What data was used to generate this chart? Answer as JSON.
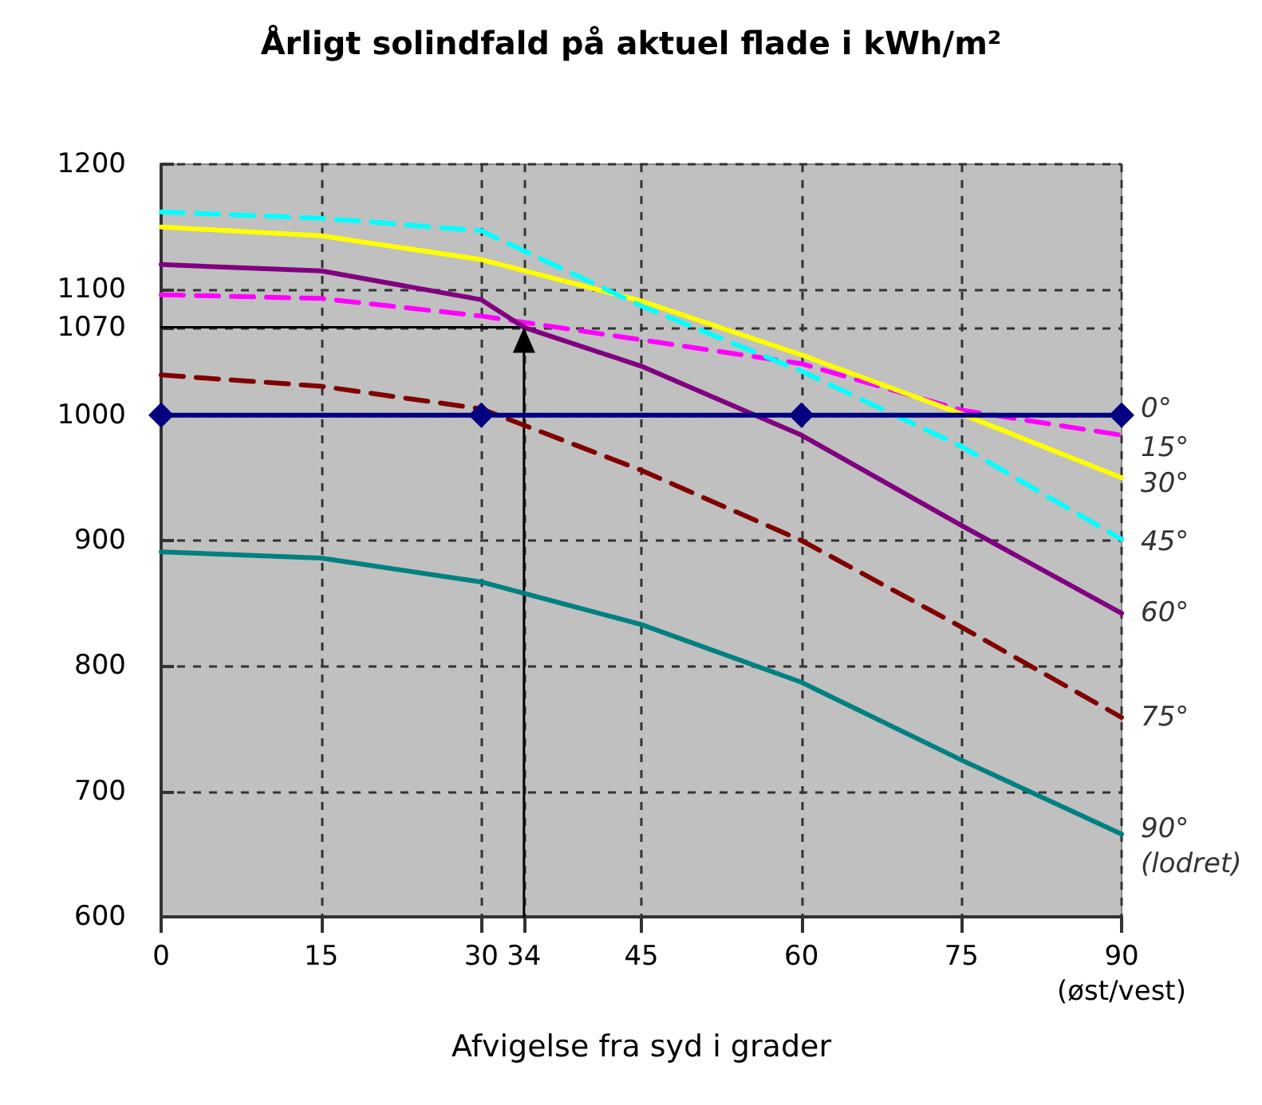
{
  "chart_data": {
    "type": "line",
    "title": "Årligt solindfald på aktuel flade i kWh/m²",
    "xlabel": "Afvigelse fra syd i grader",
    "x": [
      0,
      15,
      30,
      45,
      60,
      75,
      90
    ],
    "xlim": [
      0,
      90
    ],
    "xticks": [
      0,
      15,
      30,
      34,
      45,
      60,
      75,
      {
        "value": 90,
        "label": "90\n(øst/vest)"
      }
    ],
    "ylim": [
      600,
      1200
    ],
    "yticks": [
      600,
      700,
      800,
      900,
      1000,
      1070,
      1100,
      1200
    ],
    "grid": true,
    "legend": false,
    "series": [
      {
        "type": "line",
        "color": "#000000",
        "x": [
          34,
          34,
          0
        ],
        "values": [
          600,
          1070,
          1070
        ],
        "marker": "none",
        "line_style": "solid"
      },
      {
        "name": "0°",
        "color": "#000080",
        "x": [
          0,
          30,
          60,
          90
        ],
        "values": [
          1000,
          1000,
          1000,
          1000
        ],
        "marker": "diamond",
        "line_style": "solid"
      },
      {
        "name": "15°",
        "color": "#ff00ff",
        "values": [
          1096,
          1093,
          1079,
          1060,
          1041,
          1004,
          984
        ],
        "marker": "none",
        "line_style": "dashed"
      },
      {
        "name": "30°",
        "color": "#ffff00",
        "values": [
          1150,
          1143,
          1124,
          1091,
          1048,
          1001,
          950
        ],
        "marker": "none",
        "line_style": "solid"
      },
      {
        "name": "45°",
        "color": "#00ffff",
        "values": [
          1162,
          1157,
          1147,
          1087,
          1035,
          975,
          901
        ],
        "marker": "none",
        "line_style": "dashed"
      },
      {
        "name": "60°",
        "color": "#800080",
        "x": [
          0,
          15,
          30,
          34,
          45,
          60,
          75,
          90
        ],
        "values": [
          1120,
          1115,
          1092,
          1070,
          1039,
          984,
          912,
          842
        ],
        "marker": "none",
        "line_style": "solid"
      },
      {
        "name": "75°",
        "color": "#800000",
        "values": [
          1032,
          1023,
          1005,
          956,
          900,
          831,
          759
        ],
        "marker": "none",
        "line_style": "dashed"
      },
      {
        "name": "90°\n(lodret)",
        "color": "#008080",
        "values": [
          891,
          886,
          867,
          833,
          787,
          725,
          666
        ],
        "marker": "none",
        "line_style": "solid"
      }
    ]
  }
}
